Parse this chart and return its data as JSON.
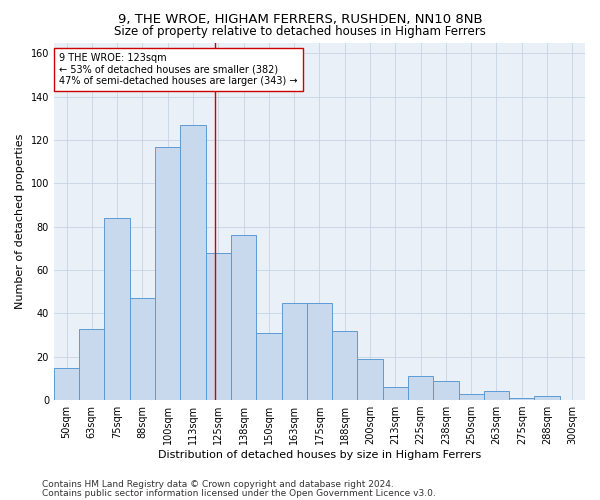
{
  "title": "9, THE WROE, HIGHAM FERRERS, RUSHDEN, NN10 8NB",
  "subtitle": "Size of property relative to detached houses in Higham Ferrers",
  "xlabel": "Distribution of detached houses by size in Higham Ferrers",
  "ylabel": "Number of detached properties",
  "categories": [
    "50sqm",
    "63sqm",
    "75sqm",
    "88sqm",
    "100sqm",
    "113sqm",
    "125sqm",
    "138sqm",
    "150sqm",
    "163sqm",
    "175sqm",
    "188sqm",
    "200sqm",
    "213sqm",
    "225sqm",
    "238sqm",
    "250sqm",
    "263sqm",
    "275sqm",
    "288sqm",
    "300sqm"
  ],
  "bar_values": [
    15,
    33,
    84,
    47,
    117,
    127,
    68,
    76,
    31,
    45,
    45,
    32,
    19,
    6,
    11,
    9,
    3,
    4,
    1,
    2,
    0
  ],
  "bar_color": "#c9d9ed",
  "bar_edge_color": "#5b9bd5",
  "marker_label_line1": "9 THE WROE: 123sqm",
  "marker_label_line2": "← 53% of detached houses are smaller (382)",
  "marker_label_line3": "47% of semi-detached houses are larger (343) →",
  "marker_color": "#cc0000",
  "annotation_box_color": "#ffffff",
  "annotation_box_edge": "#cc0000",
  "ylim": [
    0,
    165
  ],
  "yticks": [
    0,
    20,
    40,
    60,
    80,
    100,
    120,
    140,
    160
  ],
  "grid_color": "#c8d4e3",
  "background_color": "#eaf0f8",
  "footnote1": "Contains HM Land Registry data © Crown copyright and database right 2024.",
  "footnote2": "Contains public sector information licensed under the Open Government Licence v3.0.",
  "title_fontsize": 9.5,
  "subtitle_fontsize": 8.5,
  "xlabel_fontsize": 8,
  "ylabel_fontsize": 8,
  "tick_fontsize": 7,
  "footnote_fontsize": 6.5
}
